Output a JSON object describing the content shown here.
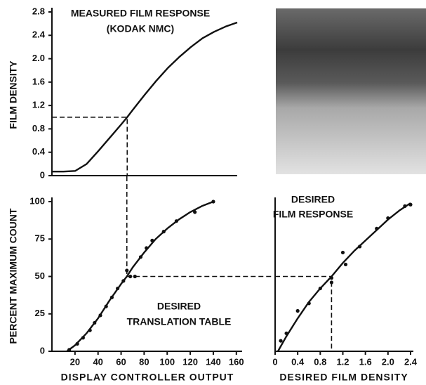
{
  "chart_data": [
    {
      "type": "line",
      "title": "MEASURED FILM RESPONSE",
      "subtitle": "(KODAK NMC)",
      "y_label": "FILM DENSITY",
      "xlim": [
        0,
        160
      ],
      "ylim": [
        0,
        2.8
      ],
      "yticks": [
        0,
        0.4,
        0.8,
        1.2,
        1.6,
        {
          "value": 2,
          "label": "2.0"
        },
        2.4,
        2.8
      ],
      "guide": {
        "x": 65,
        "y": 1.0
      },
      "series": [
        {
          "color": "#111111",
          "mode": "line",
          "x": [
            0,
            10,
            20,
            30,
            40,
            50,
            60,
            65,
            70,
            80,
            90,
            100,
            110,
            120,
            130,
            140,
            150,
            160
          ],
          "values": [
            0.07,
            0.07,
            0.08,
            0.2,
            0.42,
            0.65,
            0.88,
            1.0,
            1.13,
            1.38,
            1.62,
            1.84,
            2.03,
            2.2,
            2.35,
            2.46,
            2.55,
            2.62
          ]
        }
      ]
    },
    {
      "type": "line",
      "y_label": "PERCENT MAXIMUM COUNT",
      "x_label": "DISPLAY CONTROLLER OUTPUT",
      "annotation": [
        "DESIRED",
        "TRANSLATION TABLE"
      ],
      "xlim": [
        0,
        165
      ],
      "ylim": [
        0,
        100
      ],
      "xticks": [
        20,
        40,
        60,
        80,
        100,
        120,
        140,
        160
      ],
      "yticks": [
        0,
        25,
        50,
        75,
        100
      ],
      "guide": {
        "x": 65,
        "y": 50
      },
      "series": [
        {
          "color": "#111111",
          "mode": "line",
          "x": [
            13,
            20,
            30,
            40,
            50,
            60,
            65,
            70,
            80,
            90,
            100,
            110,
            120,
            130,
            140
          ],
          "values": [
            0,
            4,
            12,
            22,
            34,
            45,
            50,
            56,
            66,
            75,
            82,
            88,
            93,
            97,
            100
          ]
        },
        {
          "color": "#111111",
          "mode": "points",
          "x": [
            15,
            22,
            27,
            33,
            37,
            42,
            47,
            52,
            57,
            62,
            65,
            68,
            72,
            77,
            82,
            87,
            97,
            108,
            124,
            140
          ],
          "values": [
            1,
            5,
            9,
            14,
            19,
            24,
            30,
            36,
            42,
            47,
            54,
            50,
            50,
            63,
            69,
            74,
            80,
            87,
            93,
            100
          ]
        }
      ]
    },
    {
      "type": "line",
      "title": "DESIRED",
      "subtitle": "FILM RESPONSE",
      "x_label": "DESIRED FILM DENSITY",
      "xlim": [
        0,
        2.45
      ],
      "ylim": [
        0,
        100
      ],
      "xticks": [
        0,
        0.4,
        0.8,
        1.2,
        1.6,
        {
          "value": 2,
          "label": "2.0"
        },
        2.4
      ],
      "guide": {
        "x": 1.0,
        "y": 50
      },
      "series": [
        {
          "color": "#111111",
          "mode": "line",
          "x": [
            0.05,
            0.2,
            0.4,
            0.6,
            0.8,
            1.0,
            1.2,
            1.4,
            1.6,
            1.8,
            2.0,
            2.2,
            2.4
          ],
          "values": [
            0,
            10,
            22,
            33,
            42,
            50,
            59,
            67,
            74,
            81,
            88,
            94,
            99
          ]
        },
        {
          "color": "#111111",
          "mode": "points",
          "x": [
            0.1,
            0.2,
            0.4,
            0.6,
            0.8,
            1.0,
            1.0,
            1.2,
            1.25,
            1.5,
            1.8,
            2.0,
            2.3,
            2.4
          ],
          "values": [
            7,
            12,
            27,
            32,
            42,
            46,
            49,
            66,
            58,
            70,
            82,
            89,
            97,
            98
          ]
        }
      ]
    }
  ]
}
